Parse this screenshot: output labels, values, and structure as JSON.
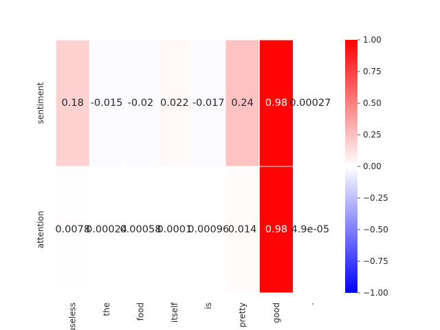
{
  "chart_data": {
    "type": "heatmap",
    "title": "",
    "xlabel": "",
    "ylabel": "",
    "x_categories": [
      "useless",
      "the",
      "food",
      "itself",
      "is",
      "pretty",
      "good",
      "."
    ],
    "y_categories": [
      "sentiment",
      "attention"
    ],
    "values": [
      [
        0.18,
        -0.015,
        -0.02,
        0.022,
        -0.017,
        0.24,
        0.98,
        0.00027
      ],
      [
        0.0078,
        0.00024,
        0.00058,
        0.0001,
        0.00096,
        0.014,
        0.98,
        4.9e-05
      ]
    ],
    "value_labels": [
      [
        "0.18",
        "-0.015",
        "-0.02",
        "0.022",
        "-0.017",
        "0.24",
        "0.98",
        "0.00027"
      ],
      [
        "0.0078",
        "0.00024",
        "0.00058",
        "0.0001",
        "0.00096",
        "0.014",
        "0.98",
        "4.9e-05"
      ]
    ],
    "colorbar": {
      "vmin": -1.0,
      "vmax": 1.0,
      "ticks": [
        1.0,
        0.75,
        0.5,
        0.25,
        0.0,
        -0.25,
        -0.5,
        -0.75,
        -1.0
      ],
      "tick_labels": [
        "1.00",
        "0.75",
        "0.50",
        "0.25",
        "0.00",
        "−0.25",
        "−0.50",
        "−0.75",
        "−1.00"
      ],
      "colormap": "bwr",
      "low_color": "#0000ff",
      "mid_color": "#ffffff",
      "high_color": "#ff0000"
    },
    "grid_line_color": "#ffffff",
    "text_color_dark": "#262626",
    "text_color_light": "#ffffff"
  }
}
